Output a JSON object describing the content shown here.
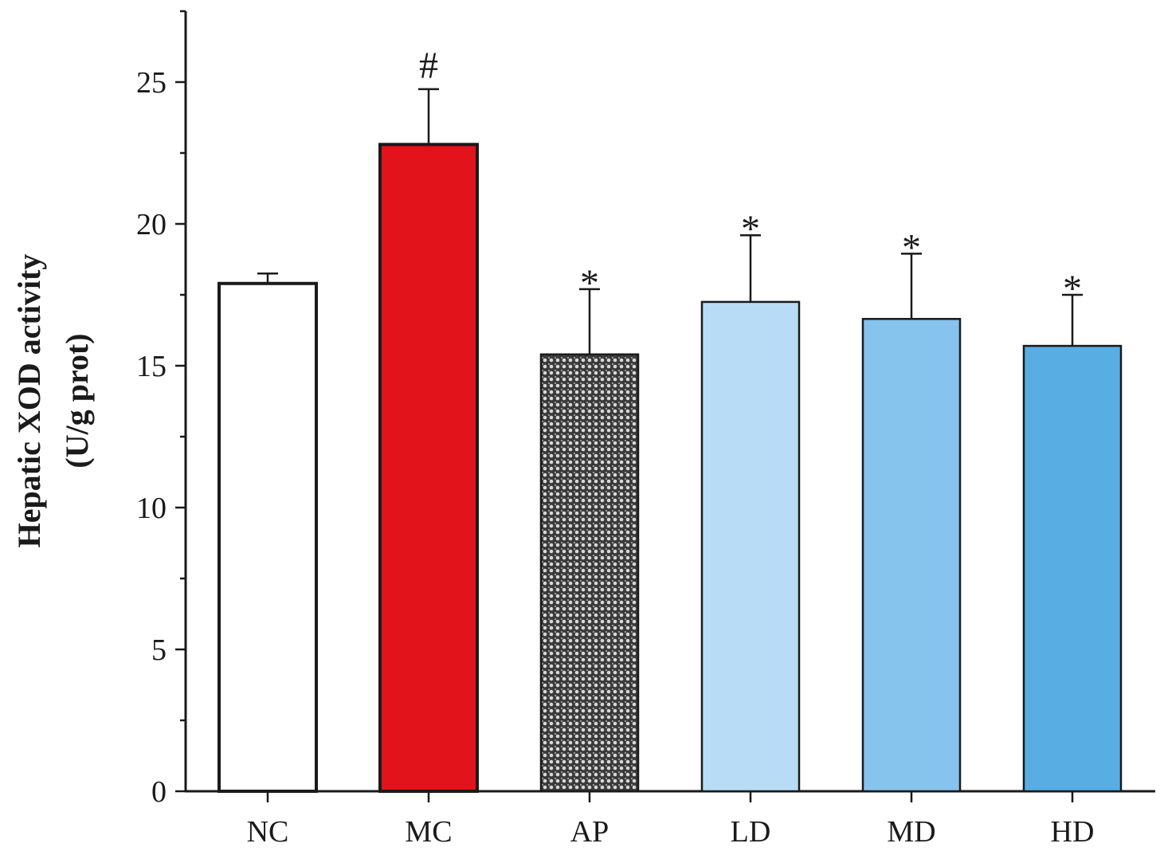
{
  "chart_data": {
    "type": "bar",
    "title": "",
    "xlabel": "",
    "ylabel": "Hepatic XOD activity",
    "ylabel_units": "(U/g prot)",
    "ylim": [
      0,
      27.5
    ],
    "yticks": [
      0,
      5,
      10,
      15,
      20,
      25
    ],
    "yticks_labels": [
      "0",
      "5",
      "10",
      "15",
      "20",
      "25"
    ],
    "grid": false,
    "categories": [
      "NC",
      "MC",
      "AP",
      "LD",
      "MD",
      "HD"
    ],
    "values": [
      17.9,
      22.8,
      15.4,
      17.25,
      16.65,
      15.7
    ],
    "errors": [
      0.35,
      1.95,
      2.3,
      2.35,
      2.3,
      1.8
    ],
    "significance": [
      "",
      "#",
      "*",
      "*",
      "*",
      "*"
    ],
    "colors": [
      "#ffffff",
      "#e3131b",
      "pattern",
      "#b8dcf5",
      "#86c3ed",
      "#58ade3"
    ]
  }
}
